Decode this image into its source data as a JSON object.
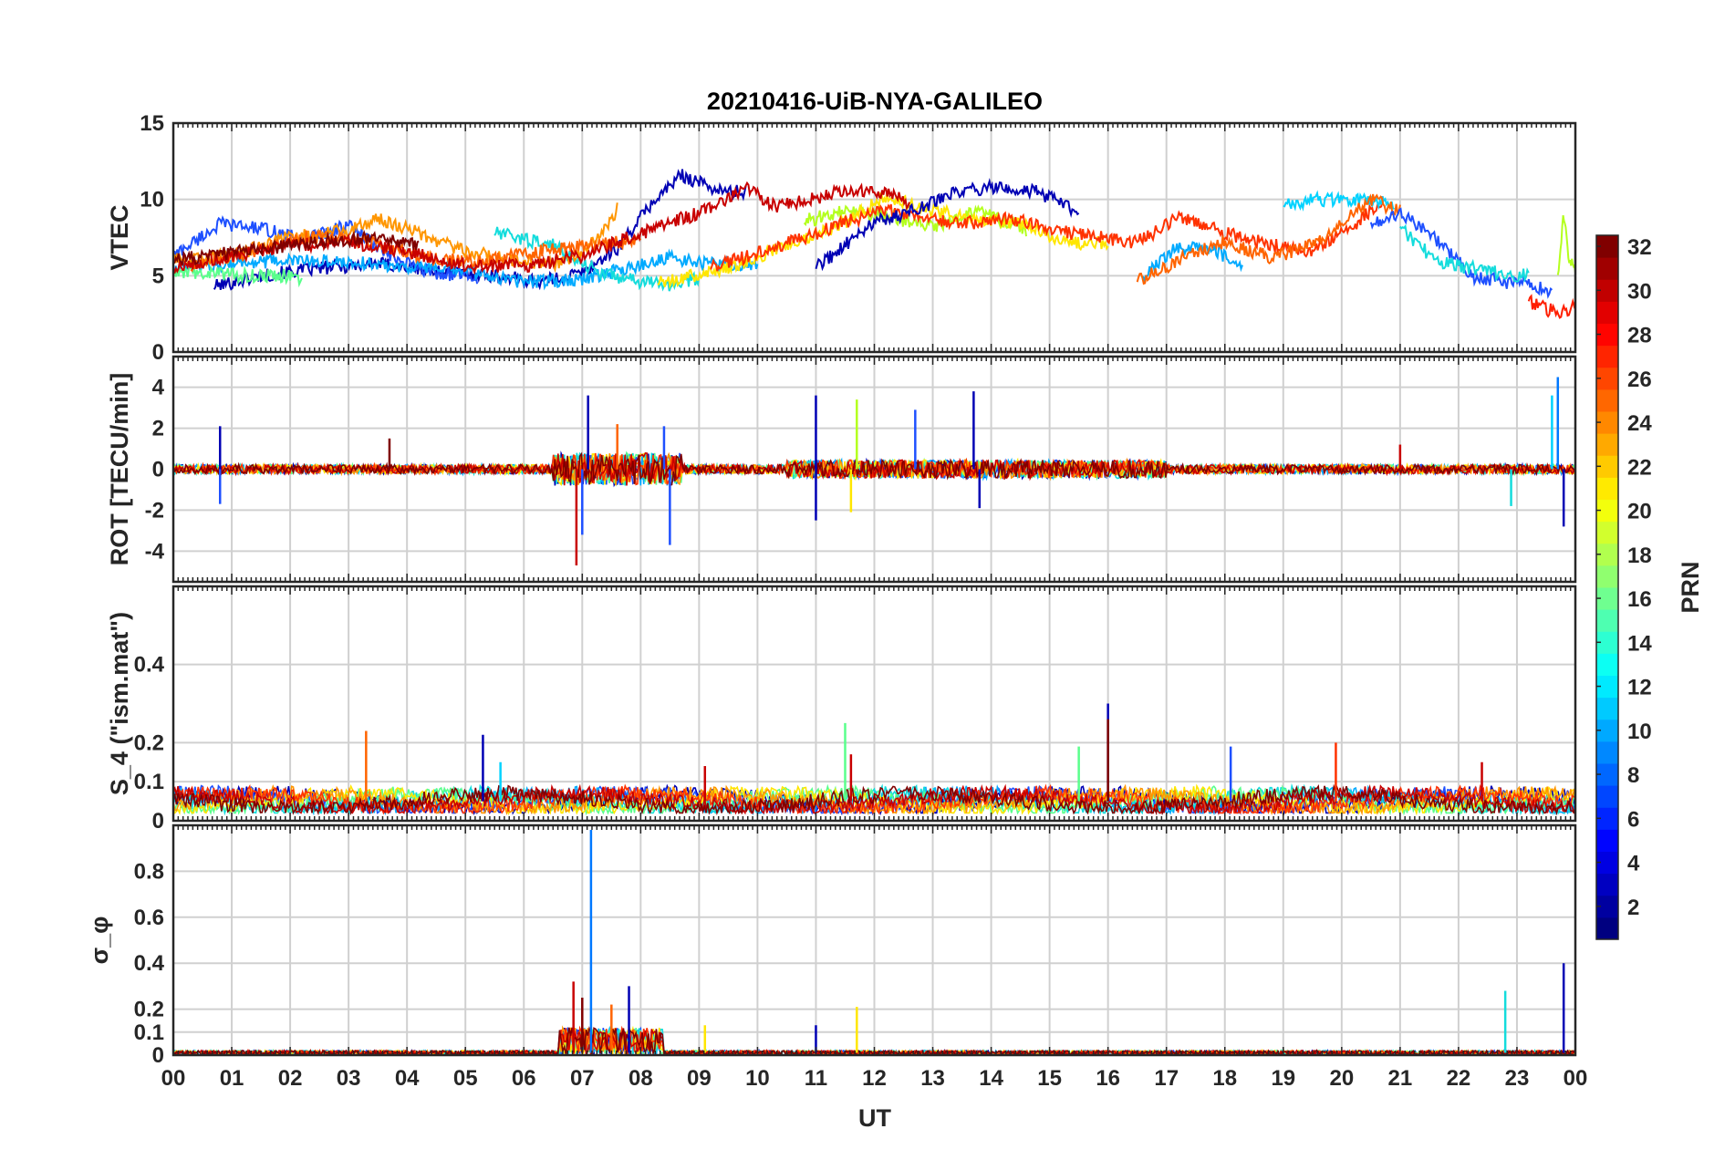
{
  "chart_data": {
    "type": "line",
    "title": "20210416-UiB-NYA-GALILEO",
    "xlabel": "UT",
    "x_ticks": [
      "00",
      "01",
      "02",
      "03",
      "04",
      "05",
      "06",
      "07",
      "08",
      "09",
      "10",
      "11",
      "12",
      "13",
      "14",
      "15",
      "16",
      "17",
      "18",
      "19",
      "20",
      "21",
      "22",
      "23",
      "00"
    ],
    "xlim": [
      0,
      24
    ],
    "grid": true,
    "panels": [
      {
        "ylabel": "VTEC",
        "ylim": [
          0,
          15
        ],
        "y_ticks": [
          0,
          5,
          10,
          15
        ],
        "series": [
          {
            "color": "#0000b4",
            "x": [
              0.7,
              1.5,
              2.5,
              3.5,
              4.5,
              5.5,
              6.3,
              7.0,
              7.6,
              8.2,
              8.7,
              9.4,
              9.8
            ],
            "y": [
              4.3,
              5.0,
              5.5,
              5.8,
              5.3,
              5.0,
              4.6,
              5.2,
              6.8,
              9.8,
              11.6,
              10.5,
              10.5
            ]
          },
          {
            "color": "#1e50ff",
            "x": [
              0.0,
              0.8,
              1.5,
              2.2,
              3.0,
              3.8,
              4.5,
              5.2
            ],
            "y": [
              6.3,
              8.4,
              8.1,
              7.4,
              8.3,
              6.0,
              5.2,
              4.9
            ]
          },
          {
            "color": "#00aaff",
            "x": [
              0.0,
              1.0,
              2.0,
              3.0,
              4.0,
              5.0,
              6.0,
              7.0,
              7.8,
              8.5,
              9.0,
              9.5,
              10.0
            ],
            "y": [
              5.5,
              5.8,
              6.0,
              5.9,
              5.6,
              5.3,
              4.6,
              4.8,
              5.5,
              6.2,
              5.8,
              5.7,
              5.7
            ]
          },
          {
            "color": "#14dcdc",
            "x": [
              5.5,
              6.5,
              7.3,
              8.0,
              8.5,
              9.0
            ],
            "y": [
              7.8,
              7.0,
              5.2,
              4.6,
              4.4,
              4.8
            ]
          },
          {
            "color": "#5aff8c",
            "x": [
              0.0,
              0.6,
              1.2,
              2.0,
              2.2
            ],
            "y": [
              5.1,
              5.2,
              5.0,
              5.0,
              4.6
            ]
          },
          {
            "color": "#b4ff1e",
            "x": [
              10.8,
              11.5,
              12.2,
              13.0,
              13.8,
              14.6
            ],
            "y": [
              8.6,
              9.2,
              8.9,
              8.2,
              9.2,
              8.0
            ]
          },
          {
            "color": "#ffe600",
            "x": [
              8.3,
              9.5,
              10.5,
              11.5,
              12.2,
              13.0,
              13.8,
              14.6,
              15.2,
              16.0
            ],
            "y": [
              4.5,
              5.5,
              7.0,
              8.5,
              10.2,
              9.2,
              8.8,
              8.3,
              7.2,
              7.1
            ]
          },
          {
            "color": "#ff9600",
            "x": [
              0.0,
              1.0,
              2.0,
              3.0,
              3.5,
              4.2,
              5.0,
              5.8,
              6.5,
              7.0,
              7.4,
              7.6
            ],
            "y": [
              6.0,
              6.3,
              7.5,
              8.0,
              8.8,
              7.8,
              6.6,
              6.0,
              5.8,
              6.5,
              8.0,
              9.4
            ]
          },
          {
            "color": "#ff6400",
            "x": [
              0.3,
              1.3,
              2.3,
              3.3,
              4.3,
              5.3,
              6.3,
              7.3,
              8.0
            ],
            "y": [
              5.5,
              6.5,
              7.6,
              7.3,
              6.2,
              5.9,
              6.6,
              7.0,
              7.4
            ]
          },
          {
            "color": "#ff3200",
            "x": [
              9.2,
              10.0,
              10.8,
              11.5,
              12.2,
              12.8,
              13.5,
              14.3,
              15.0,
              15.7,
              16.5,
              17.2,
              18.0,
              18.8,
              19.5,
              20.2,
              20.7
            ],
            "y": [
              5.5,
              6.5,
              7.5,
              8.5,
              9.3,
              8.9,
              8.4,
              8.8,
              8.0,
              7.6,
              7.2,
              8.8,
              7.8,
              7.0,
              6.6,
              8.2,
              10.0
            ]
          },
          {
            "color": "#c80000",
            "x": [
              0.0,
              1.0,
              2.0,
              3.0,
              4.0,
              5.0,
              6.0,
              7.0,
              7.8,
              8.6,
              9.3,
              9.8,
              10.3,
              10.8,
              11.4,
              12.0,
              12.6
            ],
            "y": [
              5.6,
              6.3,
              7.0,
              7.2,
              6.6,
              5.7,
              5.6,
              6.3,
              7.5,
              8.6,
              9.5,
              10.9,
              9.5,
              9.9,
              10.5,
              10.6,
              9.8
            ]
          },
          {
            "color": "#800000",
            "x": [
              0.0,
              1.0,
              2.0,
              3.0,
              3.6,
              4.2
            ],
            "y": [
              6.0,
              6.5,
              7.0,
              7.4,
              7.5,
              6.9
            ]
          },
          {
            "color": "#0000b4",
            "x": [
              11.0,
              12.0,
              12.8,
              13.4,
              14.0,
              14.8,
              15.5
            ],
            "y": [
              5.5,
              8.5,
              9.4,
              10.5,
              10.8,
              10.5,
              9.1
            ]
          },
          {
            "color": "#00aaff",
            "x": [
              16.6,
              17.2,
              17.8,
              18.3
            ],
            "y": [
              5.0,
              6.9,
              6.8,
              5.5
            ]
          },
          {
            "color": "#00d2ff",
            "x": [
              19.0,
              19.5,
              20.0,
              20.5,
              20.9
            ],
            "y": [
              9.6,
              10.0,
              9.9,
              10.0,
              9.6
            ]
          },
          {
            "color": "#ff6400",
            "x": [
              16.5,
              17.3,
              18.0,
              18.8,
              19.5,
              20.5,
              21.0
            ],
            "y": [
              4.6,
              6.2,
              7.2,
              6.2,
              7.0,
              10.0,
              9.2
            ]
          },
          {
            "color": "#1e50ff",
            "x": [
              20.5,
              21.0,
              21.4,
              21.8,
              22.2,
              22.8,
              23.2,
              23.6
            ],
            "y": [
              8.5,
              9.0,
              8.1,
              6.8,
              5.0,
              4.6,
              4.4,
              4.0
            ]
          },
          {
            "color": "#14dcdc",
            "x": [
              21.0,
              21.6,
              22.2,
              22.8,
              23.2
            ],
            "y": [
              8.2,
              6.0,
              5.5,
              5.1,
              5.0
            ]
          },
          {
            "color": "#ff1e00",
            "x": [
              23.2,
              23.5,
              23.8,
              24.0
            ],
            "y": [
              3.3,
              2.8,
              2.6,
              3.2
            ]
          },
          {
            "color": "#b4ff1e",
            "x": [
              23.7,
              23.8,
              23.9,
              24.0
            ],
            "y": [
              5.0,
              9.0,
              6.0,
              5.5
            ]
          }
        ]
      },
      {
        "ylabel": "ROT [TECU/min]",
        "ylim": [
          -5.5,
          5.5
        ],
        "y_ticks": [
          -4,
          -2,
          0,
          2,
          4
        ],
        "spikes": [
          {
            "color": "#0000b4",
            "x": 0.8,
            "y": 2.1
          },
          {
            "color": "#1e50ff",
            "x": 0.8,
            "y": -1.7
          },
          {
            "color": "#800000",
            "x": 3.7,
            "y": 1.5
          },
          {
            "color": "#c80000",
            "x": 6.9,
            "y": -4.7
          },
          {
            "color": "#1e50ff",
            "x": 7.0,
            "y": -3.2
          },
          {
            "color": "#0000b4",
            "x": 7.1,
            "y": 3.6
          },
          {
            "color": "#ff6400",
            "x": 7.6,
            "y": 2.2
          },
          {
            "color": "#1e50ff",
            "x": 8.5,
            "y": -3.7
          },
          {
            "color": "#1e50ff",
            "x": 8.4,
            "y": 2.1
          },
          {
            "color": "#0000b4",
            "x": 11.0,
            "y": 3.6
          },
          {
            "color": "#0000b4",
            "x": 11.0,
            "y": -2.5
          },
          {
            "color": "#b4ff1e",
            "x": 11.7,
            "y": 3.4
          },
          {
            "color": "#ffe600",
            "x": 11.6,
            "y": -2.1
          },
          {
            "color": "#1e50ff",
            "x": 12.7,
            "y": 2.9
          },
          {
            "color": "#0000b4",
            "x": 13.7,
            "y": 3.8
          },
          {
            "color": "#0000b4",
            "x": 13.8,
            "y": -1.9
          },
          {
            "color": "#c80000",
            "x": 21.0,
            "y": 1.2
          },
          {
            "color": "#0078ff",
            "x": 23.7,
            "y": 4.5
          },
          {
            "color": "#00d2ff",
            "x": 23.6,
            "y": 3.6
          },
          {
            "color": "#0000b4",
            "x": 23.8,
            "y": -2.8
          },
          {
            "color": "#14dcdc",
            "x": 22.9,
            "y": -1.8
          }
        ]
      },
      {
        "ylabel": "S_4 (\"ism.mat\")",
        "ylim": [
          0,
          0.6
        ],
        "y_ticks": [
          "0",
          "0.1",
          "0.2",
          "0.4"
        ],
        "spikes": [
          {
            "color": "#ff6400",
            "x": 3.3,
            "y": 0.23
          },
          {
            "color": "#0000b4",
            "x": 5.3,
            "y": 0.22
          },
          {
            "color": "#00d2ff",
            "x": 5.6,
            "y": 0.15
          },
          {
            "color": "#c80000",
            "x": 9.1,
            "y": 0.14
          },
          {
            "color": "#5aff8c",
            "x": 11.5,
            "y": 0.25
          },
          {
            "color": "#c80000",
            "x": 11.6,
            "y": 0.17
          },
          {
            "color": "#0000b4",
            "x": 16.0,
            "y": 0.3
          },
          {
            "color": "#800000",
            "x": 16.0,
            "y": 0.26
          },
          {
            "color": "#5aff8c",
            "x": 15.5,
            "y": 0.19
          },
          {
            "color": "#1e50ff",
            "x": 18.1,
            "y": 0.19
          },
          {
            "color": "#ff3200",
            "x": 19.9,
            "y": 0.2
          },
          {
            "color": "#c80000",
            "x": 22.4,
            "y": 0.15
          }
        ]
      },
      {
        "ylabel": "σ_φ",
        "ylim": [
          0,
          1.0
        ],
        "y_ticks": [
          "0",
          "0.1",
          "0.2",
          "0.4",
          "0.6",
          "0.8"
        ],
        "spikes": [
          {
            "color": "#0078ff",
            "x": 7.15,
            "y": 0.98
          },
          {
            "color": "#c80000",
            "x": 6.85,
            "y": 0.32
          },
          {
            "color": "#0000b4",
            "x": 7.8,
            "y": 0.3
          },
          {
            "color": "#ff6400",
            "x": 7.5,
            "y": 0.22
          },
          {
            "color": "#800000",
            "x": 7.0,
            "y": 0.25
          },
          {
            "color": "#ffe600",
            "x": 11.7,
            "y": 0.21
          },
          {
            "color": "#0000b4",
            "x": 11.0,
            "y": 0.13
          },
          {
            "color": "#14dcdc",
            "x": 22.8,
            "y": 0.28
          },
          {
            "color": "#0000b4",
            "x": 23.8,
            "y": 0.4
          },
          {
            "color": "#ffe600",
            "x": 9.1,
            "y": 0.13
          }
        ]
      }
    ],
    "colorbar": {
      "label": "PRN",
      "range": [
        1,
        32
      ],
      "ticks": [
        2,
        4,
        6,
        8,
        10,
        12,
        14,
        16,
        18,
        20,
        22,
        24,
        26,
        28,
        30,
        32
      ],
      "colormap": "jet"
    }
  }
}
